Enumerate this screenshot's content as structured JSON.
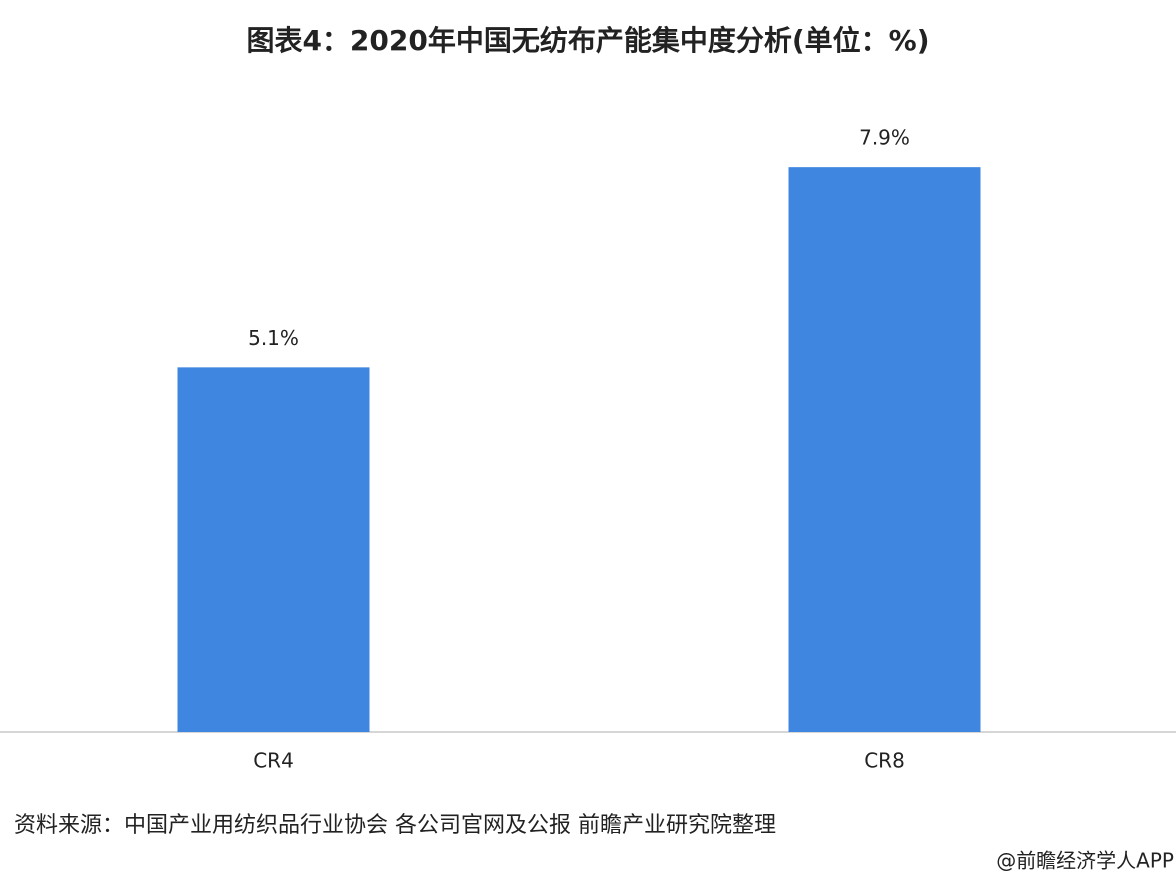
{
  "chart_data": {
    "type": "bar",
    "title": "图表4：2020年中国无纺布产能集中度分析(单位：%)",
    "categories": [
      "CR4",
      "CR8"
    ],
    "values": [
      5.1,
      7.9
    ],
    "value_labels": [
      "5.1%",
      "7.9%"
    ],
    "color": "#3f86e0",
    "ylim": [
      0,
      10
    ],
    "source": "资料来源：中国产业用纺织品行业协会 各公司官网及公报 前瞻产业研究院整理",
    "watermark": "@前瞻经济学人APP"
  }
}
